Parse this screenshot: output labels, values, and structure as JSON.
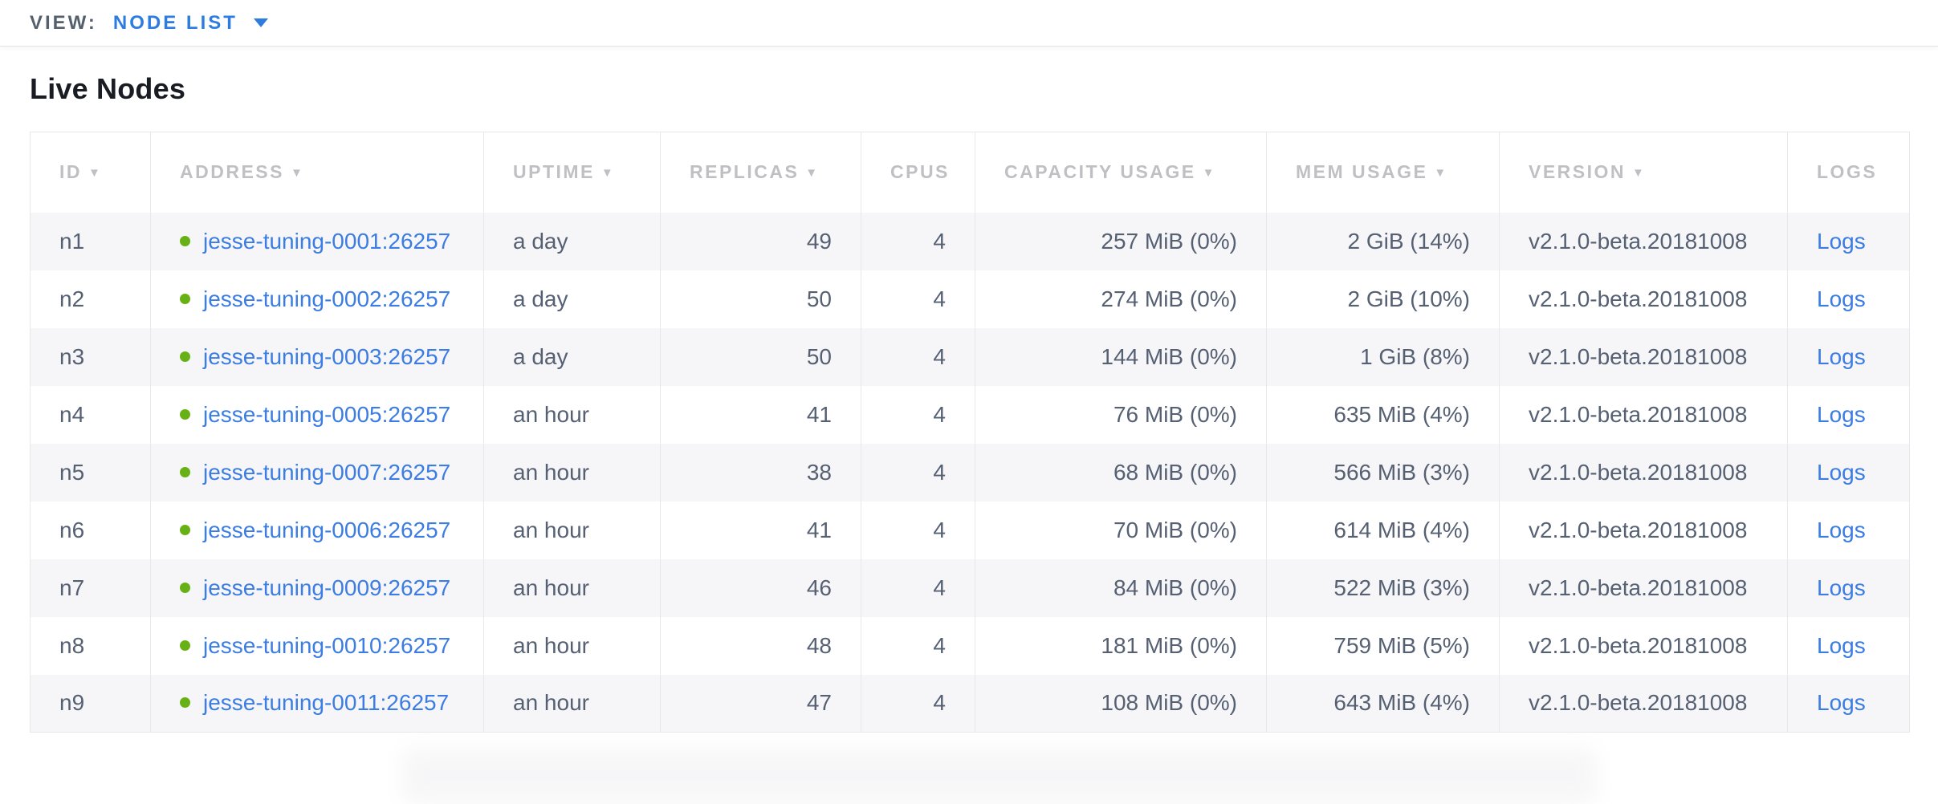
{
  "view_bar": {
    "label": "VIEW:",
    "selected": "NODE LIST",
    "dropdown_icon": "caret-down-icon"
  },
  "page": {
    "title": "Live Nodes"
  },
  "colors": {
    "accent_link": "#3b7de2",
    "node_live_status": "#67b117"
  },
  "table": {
    "columns": [
      {
        "key": "id",
        "label": "ID",
        "sortable": true
      },
      {
        "key": "address",
        "label": "ADDRESS",
        "sortable": true
      },
      {
        "key": "uptime",
        "label": "UPTIME",
        "sortable": true
      },
      {
        "key": "replicas",
        "label": "REPLICAS",
        "sortable": true
      },
      {
        "key": "cpus",
        "label": "CPUS",
        "sortable": false
      },
      {
        "key": "capacity",
        "label": "CAPACITY USAGE",
        "sortable": true
      },
      {
        "key": "mem",
        "label": "MEM USAGE",
        "sortable": true
      },
      {
        "key": "version",
        "label": "VERSION",
        "sortable": true
      },
      {
        "key": "logs",
        "label": "LOGS",
        "sortable": false
      }
    ],
    "sort_icon": "sort-desc-icon",
    "logs_link_label": "Logs",
    "rows": [
      {
        "id": "n1",
        "address": "jesse-tuning-0001:26257",
        "uptime": "a day",
        "replicas": "49",
        "cpus": "4",
        "capacity": "257 MiB (0%)",
        "mem": "2 GiB (14%)",
        "version": "v2.1.0-beta.20181008"
      },
      {
        "id": "n2",
        "address": "jesse-tuning-0002:26257",
        "uptime": "a day",
        "replicas": "50",
        "cpus": "4",
        "capacity": "274 MiB (0%)",
        "mem": "2 GiB (10%)",
        "version": "v2.1.0-beta.20181008"
      },
      {
        "id": "n3",
        "address": "jesse-tuning-0003:26257",
        "uptime": "a day",
        "replicas": "50",
        "cpus": "4",
        "capacity": "144 MiB (0%)",
        "mem": "1 GiB (8%)",
        "version": "v2.1.0-beta.20181008"
      },
      {
        "id": "n4",
        "address": "jesse-tuning-0005:26257",
        "uptime": "an hour",
        "replicas": "41",
        "cpus": "4",
        "capacity": "76 MiB (0%)",
        "mem": "635 MiB (4%)",
        "version": "v2.1.0-beta.20181008"
      },
      {
        "id": "n5",
        "address": "jesse-tuning-0007:26257",
        "uptime": "an hour",
        "replicas": "38",
        "cpus": "4",
        "capacity": "68 MiB (0%)",
        "mem": "566 MiB (3%)",
        "version": "v2.1.0-beta.20181008"
      },
      {
        "id": "n6",
        "address": "jesse-tuning-0006:26257",
        "uptime": "an hour",
        "replicas": "41",
        "cpus": "4",
        "capacity": "70 MiB (0%)",
        "mem": "614 MiB (4%)",
        "version": "v2.1.0-beta.20181008"
      },
      {
        "id": "n7",
        "address": "jesse-tuning-0009:26257",
        "uptime": "an hour",
        "replicas": "46",
        "cpus": "4",
        "capacity": "84 MiB (0%)",
        "mem": "522 MiB (3%)",
        "version": "v2.1.0-beta.20181008"
      },
      {
        "id": "n8",
        "address": "jesse-tuning-0010:26257",
        "uptime": "an hour",
        "replicas": "48",
        "cpus": "4",
        "capacity": "181 MiB (0%)",
        "mem": "759 MiB (5%)",
        "version": "v2.1.0-beta.20181008"
      },
      {
        "id": "n9",
        "address": "jesse-tuning-0011:26257",
        "uptime": "an hour",
        "replicas": "47",
        "cpus": "4",
        "capacity": "108 MiB (0%)",
        "mem": "643 MiB (4%)",
        "version": "v2.1.0-beta.20181008"
      }
    ]
  }
}
